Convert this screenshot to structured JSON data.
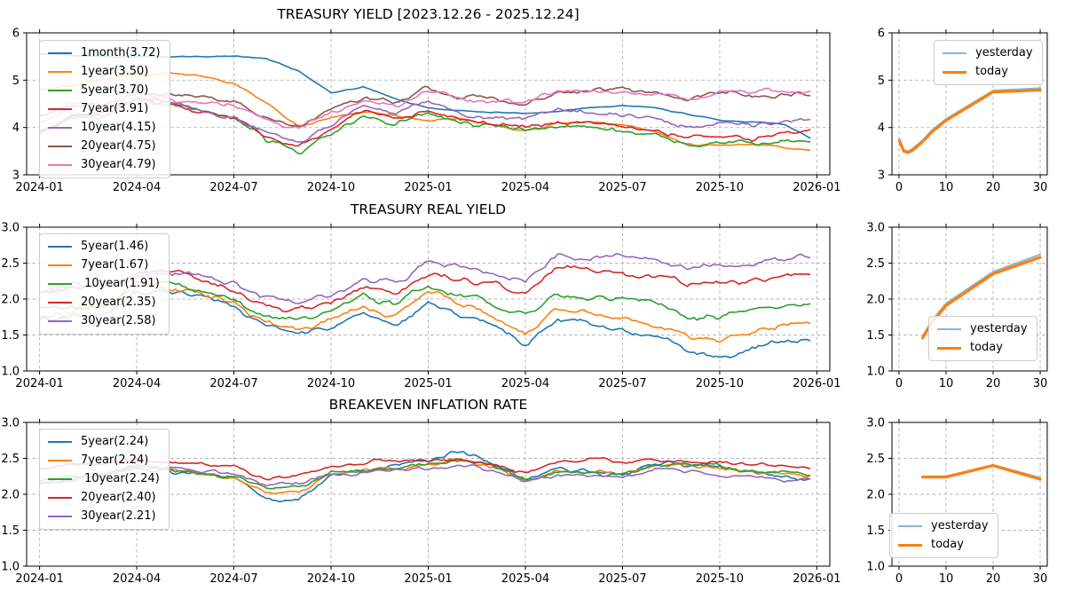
{
  "figure": {
    "background": "#ffffff",
    "grid_color": "#b3b3b3",
    "axis_color": "#000000",
    "tick_label_color": "#000000"
  },
  "legend_curve_labels": [
    "yesterday",
    "today"
  ],
  "colors": {
    "blue": "#1f77b4",
    "orange": "#ff7f0e",
    "green": "#2ca02c",
    "red": "#d62728",
    "purple": "#9467bd",
    "brown": "#8c564b",
    "pink": "#e377c2",
    "yesterday": "#85b8da",
    "today": "#ff7f0e"
  },
  "chart_data": [
    {
      "type": "line",
      "title": "TREASURY YIELD [2023.12.26 - 2025.12.24]",
      "x_tick_labels": [
        "2024-01",
        "2024-04",
        "2024-07",
        "2024-10",
        "2025-01",
        "2025-04",
        "2025-07",
        "2025-10",
        "2026-01"
      ],
      "x_unit": "months from 2024-01, data ends 2025-12-24",
      "ylim": [
        3,
        6
      ],
      "yticks": [
        "3",
        "4",
        "5",
        "6"
      ],
      "grid": true,
      "legend_position": "upper-left",
      "series": [
        {
          "name": "1month(3.72)",
          "color": "#1f77b4",
          "values": [
            5.55,
            5.52,
            5.5,
            5.5,
            5.5,
            5.5,
            5.52,
            5.45,
            5.2,
            4.72,
            4.85,
            4.6,
            4.4,
            4.35,
            4.33,
            4.3,
            4.33,
            4.4,
            4.45,
            4.43,
            4.28,
            4.15,
            4.12,
            4.08,
            3.72
          ]
        },
        {
          "name": "1year(3.50)",
          "color": "#ff7f0e",
          "values": [
            4.8,
            4.9,
            5.0,
            5.1,
            5.15,
            5.12,
            4.95,
            4.5,
            4.02,
            4.2,
            4.35,
            4.25,
            4.16,
            4.2,
            4.05,
            3.95,
            4.08,
            4.1,
            4.06,
            3.92,
            3.68,
            3.6,
            3.62,
            3.57,
            3.5
          ]
        },
        {
          "name": "5year(3.70)",
          "color": "#2ca02c",
          "values": [
            3.85,
            4.2,
            4.22,
            4.55,
            4.45,
            4.3,
            4.2,
            3.72,
            3.5,
            3.9,
            4.25,
            4.08,
            4.32,
            4.1,
            3.98,
            3.88,
            4.0,
            3.95,
            3.88,
            3.78,
            3.62,
            3.7,
            3.62,
            3.72,
            3.7
          ]
        },
        {
          "name": "7year(3.91)",
          "color": "#d62728",
          "values": [
            3.92,
            4.25,
            4.27,
            4.58,
            4.48,
            4.35,
            4.25,
            3.82,
            3.62,
            3.98,
            4.3,
            4.14,
            4.4,
            4.18,
            4.08,
            3.98,
            4.1,
            4.08,
            4.02,
            3.92,
            3.78,
            3.85,
            3.78,
            3.9,
            3.91
          ]
        },
        {
          "name": "10year(4.15)",
          "color": "#9467bd",
          "values": [
            3.95,
            4.28,
            4.3,
            4.62,
            4.5,
            4.4,
            4.3,
            3.92,
            3.72,
            4.06,
            4.4,
            4.24,
            4.55,
            4.32,
            4.22,
            4.12,
            4.3,
            4.28,
            4.22,
            4.18,
            4.02,
            4.1,
            4.05,
            4.14,
            4.15
          ]
        },
        {
          "name": "20year(4.75)",
          "color": "#8c564b",
          "values": [
            4.28,
            4.52,
            4.55,
            4.85,
            4.72,
            4.6,
            4.52,
            4.2,
            4.02,
            4.38,
            4.66,
            4.52,
            4.85,
            4.62,
            4.58,
            4.52,
            4.75,
            4.8,
            4.78,
            4.72,
            4.58,
            4.7,
            4.62,
            4.73,
            4.75
          ]
        },
        {
          "name": "30year(4.79)",
          "color": "#e377c2",
          "values": [
            4.1,
            4.42,
            4.45,
            4.75,
            4.62,
            4.5,
            4.42,
            4.12,
            3.98,
            4.32,
            4.6,
            4.48,
            4.8,
            4.6,
            4.56,
            4.52,
            4.78,
            4.85,
            4.82,
            4.78,
            4.62,
            4.75,
            4.68,
            4.78,
            4.79
          ]
        }
      ]
    },
    {
      "type": "line",
      "title": "",
      "x_tick_labels": [
        "0",
        "10",
        "20",
        "30"
      ],
      "x_unit": "maturity (years)",
      "ylim": [
        3,
        6
      ],
      "yticks": [
        "3",
        "4",
        "5",
        "6"
      ],
      "grid": true,
      "legend_position": "upper-right",
      "series": [
        {
          "name": "yesterday",
          "color": "#85b8da",
          "points": [
            [
              0.083,
              3.76
            ],
            [
              1,
              3.52
            ],
            [
              2,
              3.5
            ],
            [
              3,
              3.56
            ],
            [
              5,
              3.73
            ],
            [
              7,
              3.94
            ],
            [
              10,
              4.18
            ],
            [
              20,
              4.78
            ],
            [
              30,
              4.83
            ]
          ]
        },
        {
          "name": "today",
          "color": "#ff7f0e",
          "points": [
            [
              0.083,
              3.72
            ],
            [
              1,
              3.5
            ],
            [
              2,
              3.47
            ],
            [
              3,
              3.53
            ],
            [
              5,
              3.7
            ],
            [
              7,
              3.91
            ],
            [
              10,
              4.15
            ],
            [
              20,
              4.75
            ],
            [
              30,
              4.79
            ]
          ]
        }
      ]
    },
    {
      "type": "line",
      "title": "TREASURY REAL YIELD",
      "x_tick_labels": [
        "2024-01",
        "2024-04",
        "2024-07",
        "2024-10",
        "2025-01",
        "2025-04",
        "2025-07",
        "2025-10",
        "2026-01"
      ],
      "x_unit": "months from 2024-01, data ends 2025-12-24",
      "ylim": [
        1,
        3
      ],
      "yticks": [
        "1.0",
        "1.5",
        "2.0",
        "2.5",
        "3.0"
      ],
      "grid": true,
      "legend_position": "upper-left",
      "series": [
        {
          "name": "5year(1.46)",
          "color": "#1f77b4",
          "values": [
            1.72,
            1.8,
            1.8,
            2.08,
            2.1,
            2.0,
            1.88,
            1.62,
            1.47,
            1.58,
            1.78,
            1.65,
            1.98,
            1.78,
            1.62,
            1.35,
            1.68,
            1.62,
            1.52,
            1.45,
            1.25,
            1.2,
            1.32,
            1.42,
            1.46
          ]
        },
        {
          "name": "7year(1.67)",
          "color": "#ff7f0e",
          "values": [
            1.78,
            1.87,
            1.87,
            2.12,
            2.15,
            2.05,
            1.92,
            1.7,
            1.58,
            1.7,
            1.9,
            1.78,
            2.08,
            1.92,
            1.76,
            1.52,
            1.85,
            1.8,
            1.72,
            1.65,
            1.48,
            1.45,
            1.55,
            1.65,
            1.67
          ]
        },
        {
          "name": " 10year(1.91)",
          "color": "#2ca02c",
          "values": [
            1.85,
            1.95,
            1.95,
            2.2,
            2.25,
            2.12,
            2.0,
            1.8,
            1.7,
            1.82,
            2.02,
            1.92,
            2.22,
            2.06,
            1.95,
            1.75,
            2.1,
            2.05,
            2.0,
            1.92,
            1.75,
            1.72,
            1.82,
            1.9,
            1.91
          ]
        },
        {
          "name": "20year(2.35)",
          "color": "#d62728",
          "values": [
            2.08,
            2.14,
            2.14,
            2.34,
            2.35,
            2.25,
            2.14,
            1.95,
            1.86,
            1.97,
            2.16,
            2.06,
            2.4,
            2.28,
            2.2,
            2.05,
            2.45,
            2.4,
            2.38,
            2.3,
            2.18,
            2.2,
            2.25,
            2.35,
            2.35
          ]
        },
        {
          "name": "30year(2.58)",
          "color": "#9467bd",
          "values": [
            2.1,
            2.2,
            2.2,
            2.36,
            2.36,
            2.3,
            2.2,
            2.02,
            1.95,
            2.06,
            2.26,
            2.2,
            2.5,
            2.4,
            2.36,
            2.26,
            2.64,
            2.55,
            2.58,
            2.54,
            2.44,
            2.5,
            2.5,
            2.6,
            2.58
          ]
        }
      ]
    },
    {
      "type": "line",
      "title": "",
      "x_tick_labels": [
        "0",
        "10",
        "20",
        "30"
      ],
      "x_unit": "maturity (years)",
      "ylim": [
        1,
        3
      ],
      "yticks": [
        "1.0",
        "1.5",
        "2.0",
        "2.5",
        "3.0"
      ],
      "grid": true,
      "legend_position": "lower-right",
      "series": [
        {
          "name": "yesterday",
          "color": "#85b8da",
          "points": [
            [
              5,
              1.48
            ],
            [
              7,
              1.7
            ],
            [
              10,
              1.94
            ],
            [
              20,
              2.38
            ],
            [
              30,
              2.62
            ]
          ]
        },
        {
          "name": "today",
          "color": "#ff7f0e",
          "points": [
            [
              5,
              1.46
            ],
            [
              7,
              1.67
            ],
            [
              10,
              1.91
            ],
            [
              20,
              2.35
            ],
            [
              30,
              2.58
            ]
          ]
        }
      ]
    },
    {
      "type": "line",
      "title": "BREAKEVEN INFLATION RATE",
      "x_tick_labels": [
        "2024-01",
        "2024-04",
        "2024-07",
        "2024-10",
        "2025-01",
        "2025-04",
        "2025-07",
        "2025-10",
        "2026-01"
      ],
      "x_unit": "months from 2024-01, data ends 2025-12-24",
      "ylim": [
        1,
        3
      ],
      "yticks": [
        "1.0",
        "1.5",
        "2.0",
        "2.5",
        "3.0"
      ],
      "grid": true,
      "legend_position": "upper-left",
      "series": [
        {
          "name": "5year(2.24)",
          "color": "#1f77b4",
          "values": [
            2.14,
            2.2,
            2.26,
            2.4,
            2.34,
            2.26,
            2.2,
            1.92,
            1.97,
            2.3,
            2.36,
            2.4,
            2.46,
            2.58,
            2.44,
            2.18,
            2.34,
            2.34,
            2.3,
            2.44,
            2.4,
            2.4,
            2.34,
            2.28,
            2.24
          ]
        },
        {
          "name": "7year(2.24)",
          "color": "#ff7f0e",
          "values": [
            2.15,
            2.21,
            2.26,
            2.41,
            2.35,
            2.28,
            2.22,
            2.0,
            2.04,
            2.3,
            2.35,
            2.38,
            2.42,
            2.5,
            2.4,
            2.18,
            2.32,
            2.3,
            2.28,
            2.38,
            2.38,
            2.37,
            2.3,
            2.27,
            2.24
          ]
        },
        {
          "name": " 10year(2.24)",
          "color": "#2ca02c",
          "values": [
            2.2,
            2.25,
            2.3,
            2.42,
            2.37,
            2.3,
            2.25,
            2.06,
            2.1,
            2.3,
            2.34,
            2.36,
            2.4,
            2.45,
            2.36,
            2.2,
            2.3,
            2.3,
            2.28,
            2.4,
            2.41,
            2.39,
            2.32,
            2.29,
            2.24
          ]
        },
        {
          "name": "20year(2.40)",
          "color": "#d62728",
          "values": [
            2.36,
            2.4,
            2.42,
            2.5,
            2.47,
            2.44,
            2.41,
            2.2,
            2.25,
            2.4,
            2.44,
            2.45,
            2.47,
            2.5,
            2.44,
            2.3,
            2.45,
            2.47,
            2.44,
            2.5,
            2.47,
            2.47,
            2.42,
            2.42,
            2.4
          ]
        },
        {
          "name": "30year(2.21)",
          "color": "#9467bd",
          "values": [
            2.14,
            2.24,
            2.3,
            2.39,
            2.36,
            2.31,
            2.29,
            2.1,
            2.14,
            2.29,
            2.33,
            2.34,
            2.37,
            2.4,
            2.31,
            2.19,
            2.29,
            2.29,
            2.27,
            2.34,
            2.31,
            2.29,
            2.27,
            2.24,
            2.21
          ]
        }
      ]
    },
    {
      "type": "line",
      "title": "",
      "x_tick_labels": [
        "0",
        "10",
        "20",
        "30"
      ],
      "x_unit": "maturity (years)",
      "ylim": [
        1,
        3
      ],
      "yticks": [
        "1.0",
        "1.5",
        "2.0",
        "2.5",
        "3.0"
      ],
      "grid": true,
      "legend_position": "lower-left",
      "series": [
        {
          "name": "yesterday",
          "color": "#85b8da",
          "points": [
            [
              5,
              2.25
            ],
            [
              7,
              2.25
            ],
            [
              10,
              2.25
            ],
            [
              20,
              2.41
            ],
            [
              30,
              2.23
            ]
          ]
        },
        {
          "name": "today",
          "color": "#ff7f0e",
          "points": [
            [
              5,
              2.24
            ],
            [
              7,
              2.24
            ],
            [
              10,
              2.24
            ],
            [
              20,
              2.4
            ],
            [
              30,
              2.21
            ]
          ]
        }
      ]
    }
  ]
}
